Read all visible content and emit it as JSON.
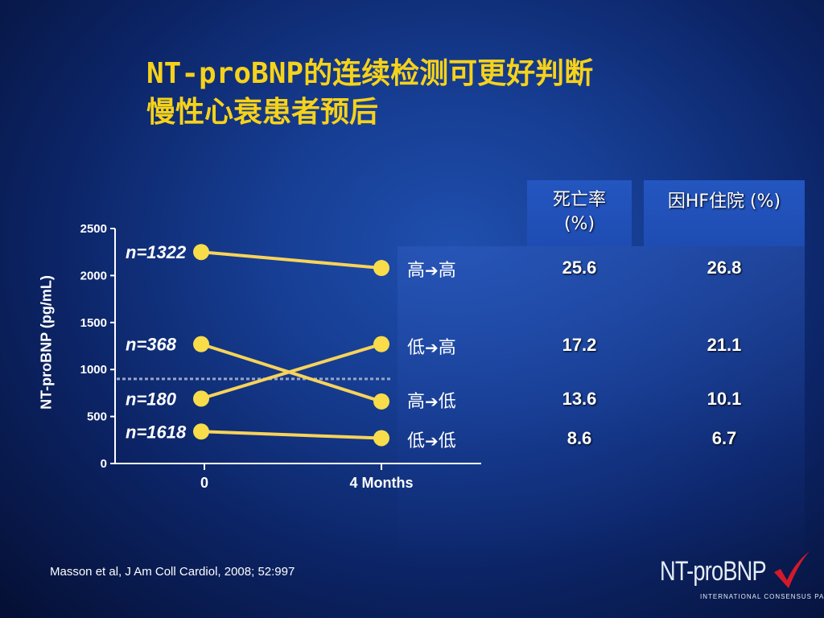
{
  "title": {
    "line1": "NT-proBNP的连续检测可更好判断",
    "line2": "慢性心衰患者预后"
  },
  "chart_data": {
    "type": "line",
    "ylabel": "NT-proBNP (pg/mL)",
    "xlabel": "",
    "ylim": [
      0,
      2500
    ],
    "yticks": [
      0,
      500,
      1000,
      1500,
      2000,
      2500
    ],
    "categories": [
      "0",
      "4 Months"
    ],
    "threshold": 900,
    "series": [
      {
        "label": "n=1322",
        "values": [
          2250,
          2080
        ]
      },
      {
        "label": "n=368",
        "values": [
          1270,
          660
        ]
      },
      {
        "label": "n=180",
        "values": [
          690,
          1270
        ]
      },
      {
        "label": "n=1618",
        "values": [
          340,
          270
        ]
      }
    ],
    "colors": {
      "line": "#f7d35a",
      "marker": "#f8dc4a",
      "threshold": "#9aa6c8"
    }
  },
  "table": {
    "headers": [
      "死亡率\n(%)",
      "因HF住院 (%)"
    ],
    "header_col1_line1": "死亡率",
    "header_col1_line2": "(%)",
    "rows": [
      {
        "from": "高",
        "to": "高",
        "mortality": "25.6",
        "hospitalization": "26.8"
      },
      {
        "from": "低",
        "to": "高",
        "mortality": "17.2",
        "hospitalization": "21.1"
      },
      {
        "from": "高",
        "to": "低",
        "mortality": "13.6",
        "hospitalization": "10.1"
      },
      {
        "from": "低",
        "to": "低",
        "mortality": "8.6",
        "hospitalization": "6.7"
      }
    ],
    "arrow_glyph": "➔"
  },
  "citation": "Masson et al, J Am Coll Cardiol, 2008; 52:997",
  "logo": {
    "text": "NT-proBNP",
    "subtitle": "INTERNATIONAL CONSENSUS PANEL",
    "check_color": "#d11a2a"
  }
}
